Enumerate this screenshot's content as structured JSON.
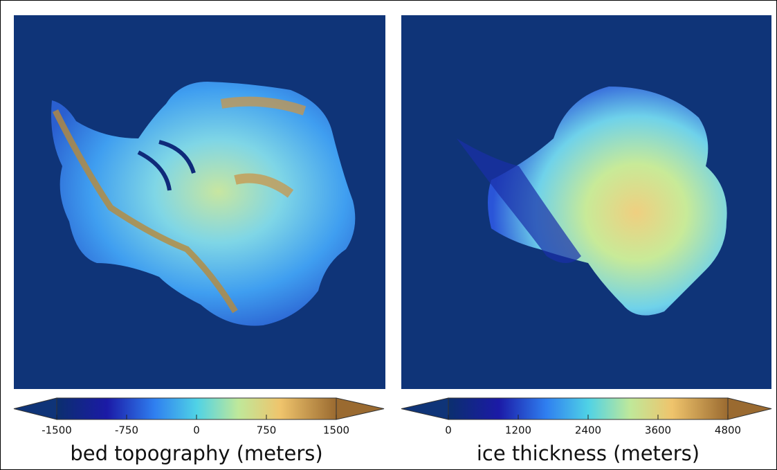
{
  "panels": [
    {
      "colorbar_label": "bed topography (meters)",
      "xlim": [
        -1500,
        1500
      ],
      "xticks": [
        -1500,
        -750,
        0,
        750,
        1500
      ]
    },
    {
      "colorbar_label": "ice thickness (meters)",
      "xlim": [
        0,
        4800
      ],
      "xticks": [
        0,
        1200,
        2400,
        3600,
        4800
      ]
    }
  ]
}
